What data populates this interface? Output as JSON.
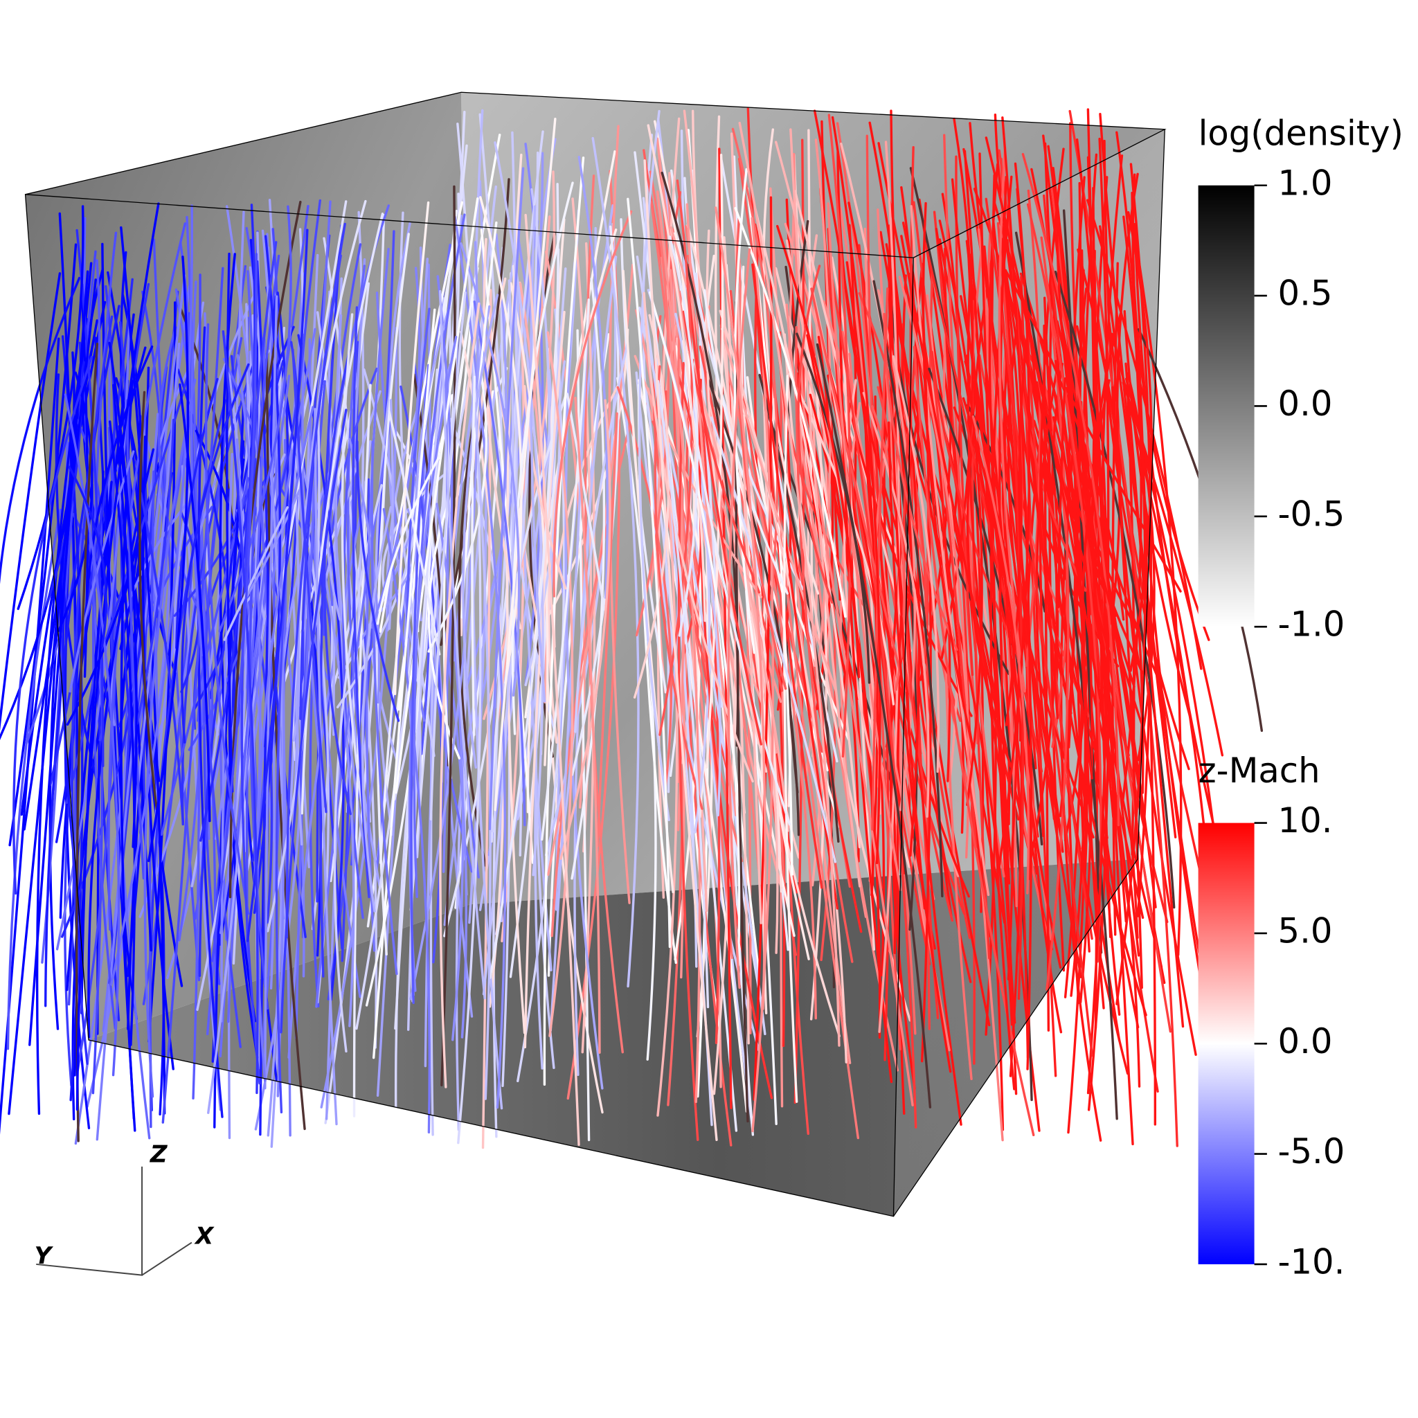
{
  "colorbars": [
    {
      "title": "log(density)",
      "range": [
        -1,
        1
      ],
      "colors": [
        "#ffffff",
        "#000000"
      ],
      "ticks": [
        {
          "value": 1,
          "label": "1.0"
        },
        0.5,
        {
          "value": 0,
          "label": "0.0"
        },
        -0.5,
        {
          "value": -1,
          "label": "-1.0"
        }
      ]
    },
    {
      "title": "z-Mach",
      "range": [
        -10,
        10
      ],
      "colors": [
        "#0000ff",
        "#ffffff",
        "#ff0000"
      ],
      "ticks": [
        {
          "value": 10,
          "label": "10."
        },
        {
          "value": 5,
          "label": "5.0"
        },
        {
          "value": 0,
          "label": "0.0"
        },
        {
          "value": -5,
          "label": "-5.0"
        },
        {
          "value": -10,
          "label": "-10."
        }
      ]
    }
  ],
  "axes": {
    "z": "Z",
    "x": "X",
    "y": "Y"
  }
}
